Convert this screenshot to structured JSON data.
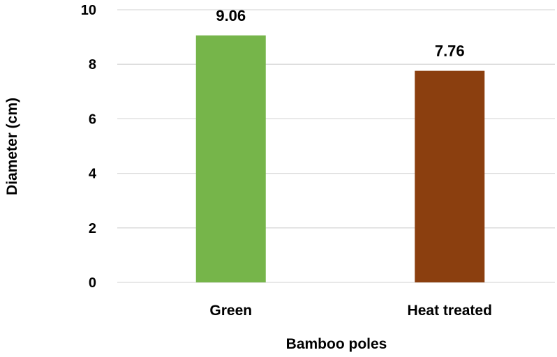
{
  "chart_data": {
    "type": "bar",
    "title": "",
    "xlabel": "Bamboo poles",
    "ylabel": "Diameter (cm)",
    "categories": [
      "Green",
      "Heat treated"
    ],
    "values": [
      9.06,
      7.76
    ],
    "data_labels": [
      "9.06",
      "7.76"
    ],
    "bar_colors": [
      "#76b54a",
      "#8b3f0f"
    ],
    "ylim": [
      0,
      10
    ],
    "yticks": [
      0,
      2,
      4,
      6,
      8,
      10
    ],
    "ytick_labels": [
      "0",
      "2",
      "4",
      "6",
      "8",
      "10"
    ],
    "grid": true,
    "legend": "none"
  }
}
